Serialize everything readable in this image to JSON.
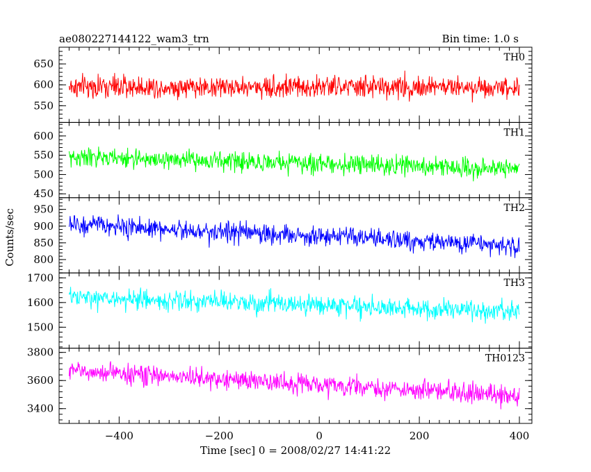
{
  "header": {
    "obs_id": "ae080227144122_wam3_trn",
    "bin_time": "Bin time: 1.0 s"
  },
  "chart_data": {
    "type": "line",
    "title": "ae080227144122_wam3_trn",
    "subtitle": "Bin time: 1.0 s",
    "xlabel": "Time [sec] 0 = 2008/02/27 14:41:22",
    "ylabel": "Counts/sec",
    "xlim": [
      -520,
      425
    ],
    "x_ticks": [
      -400,
      -200,
      0,
      200,
      400
    ],
    "x_tick_labels": [
      "−400",
      "−200",
      "0",
      "200",
      "400"
    ],
    "x_range_data": [
      -500,
      400
    ],
    "bin_seconds": 1.0,
    "panels": [
      {
        "name": "TH0",
        "color": "#ff0000",
        "ylim": [
          510,
          690
        ],
        "y_ticks": [
          550,
          600,
          650
        ],
        "y_tick_labels": [
          "550",
          "600",
          "650"
        ],
        "trend": [
          [
            -500,
            595
          ],
          [
            400,
            595
          ]
        ],
        "noise_amplitude": 25,
        "y_clip": [
          500,
          690
        ]
      },
      {
        "name": "TH1",
        "color": "#00ff00",
        "ylim": [
          440,
          635
        ],
        "y_ticks": [
          450,
          500,
          550,
          600
        ],
        "y_tick_labels": [
          "450",
          "500",
          "550",
          "600"
        ],
        "trend": [
          [
            -500,
            545
          ],
          [
            -200,
            535
          ],
          [
            400,
            515
          ]
        ],
        "noise_amplitude": 23,
        "y_clip": [
          440,
          640
        ]
      },
      {
        "name": "TH2",
        "color": "#0000ff",
        "ylim": [
          760,
          985
        ],
        "y_ticks": [
          800,
          850,
          900,
          950
        ],
        "y_tick_labels": [
          "800",
          "850",
          "900",
          "950"
        ],
        "trend": [
          [
            -500,
            905
          ],
          [
            0,
            870
          ],
          [
            400,
            840
          ]
        ],
        "noise_amplitude": 28,
        "y_clip": [
          760,
          990
        ]
      },
      {
        "name": "TH3",
        "color": "#00ffff",
        "ylim": [
          1415,
          1720
        ],
        "y_ticks": [
          1500,
          1600,
          1700
        ],
        "y_tick_labels": [
          "1500",
          "1600",
          "1700"
        ],
        "trend": [
          [
            -500,
            1620
          ],
          [
            0,
            1590
          ],
          [
            400,
            1560
          ]
        ],
        "noise_amplitude": 38,
        "y_clip": [
          1415,
          1720
        ]
      },
      {
        "name": "TH0123",
        "color": "#ff00ff",
        "ylim": [
          3295,
          3830
        ],
        "y_ticks": [
          3400,
          3600,
          3800
        ],
        "y_tick_labels": [
          "3400",
          "3600",
          "3800"
        ],
        "trend": [
          [
            -500,
            3670
          ],
          [
            0,
            3570
          ],
          [
            400,
            3490
          ]
        ],
        "noise_amplitude": 65,
        "y_clip": [
          3300,
          3830
        ]
      }
    ]
  }
}
